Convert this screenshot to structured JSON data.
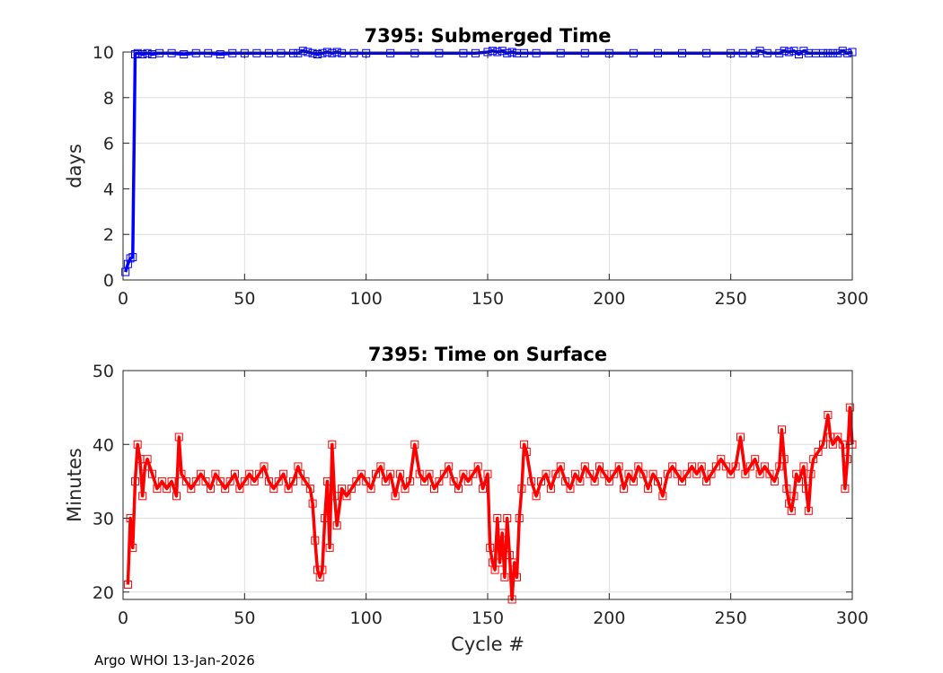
{
  "chart_data": [
    {
      "type": "line",
      "title": "7395: Submerged Time",
      "xlabel": "",
      "ylabel": "days",
      "xlim": [
        0,
        300
      ],
      "ylim": [
        0,
        10
      ],
      "xticks": [
        0,
        50,
        100,
        150,
        200,
        250,
        300
      ],
      "yticks": [
        0,
        2,
        4,
        6,
        8,
        10
      ],
      "grid": true,
      "marker": "square",
      "color": "#0000ff",
      "series": [
        {
          "x": [
            1,
            2,
            3,
            4,
            5,
            6,
            8,
            10,
            12,
            15,
            20,
            25,
            30,
            35,
            40,
            45,
            50,
            55,
            60,
            65,
            70,
            72,
            74,
            76,
            78,
            80,
            82,
            84,
            86,
            88,
            90,
            95,
            100,
            110,
            120,
            130,
            140,
            145,
            150,
            152,
            154,
            156,
            158,
            160,
            162,
            165,
            170,
            180,
            190,
            200,
            210,
            220,
            230,
            240,
            250,
            255,
            260,
            262,
            265,
            270,
            272,
            274,
            276,
            278,
            280,
            282,
            285,
            288,
            290,
            292,
            294,
            296,
            298,
            300
          ],
          "y": [
            0.35,
            0.7,
            0.95,
            1.0,
            9.9,
            9.95,
            9.9,
            9.95,
            9.9,
            9.95,
            9.95,
            9.9,
            9.95,
            9.95,
            9.9,
            9.95,
            9.95,
            9.95,
            9.95,
            9.95,
            9.95,
            9.95,
            10.05,
            10.0,
            9.95,
            9.9,
            9.95,
            10.0,
            9.95,
            10.0,
            9.95,
            9.95,
            9.95,
            9.95,
            9.95,
            9.95,
            9.95,
            9.95,
            10.0,
            10.05,
            10.0,
            10.05,
            9.95,
            10.0,
            9.95,
            9.95,
            9.95,
            9.95,
            9.95,
            9.95,
            9.95,
            9.95,
            9.95,
            9.95,
            9.95,
            9.95,
            9.95,
            10.05,
            9.95,
            9.95,
            10.05,
            10.0,
            10.05,
            9.9,
            10.05,
            9.95,
            9.95,
            9.95,
            9.95,
            9.95,
            9.95,
            10.05,
            9.95,
            10.0
          ]
        }
      ]
    },
    {
      "type": "line",
      "title": "7395: Time on Surface",
      "xlabel": "Cycle #",
      "ylabel": "Minutes",
      "xlim": [
        0,
        300
      ],
      "ylim": [
        19,
        50
      ],
      "xticks": [
        0,
        50,
        100,
        150,
        200,
        250,
        300
      ],
      "yticks": [
        20,
        30,
        40,
        50
      ],
      "grid": true,
      "marker": "square",
      "color": "#ff0000",
      "series": [
        {
          "x": [
            2,
            3,
            4,
            5,
            6,
            7,
            8,
            9,
            10,
            12,
            14,
            16,
            18,
            20,
            22,
            23,
            24,
            26,
            28,
            30,
            32,
            34,
            36,
            38,
            40,
            42,
            44,
            46,
            48,
            50,
            52,
            54,
            56,
            58,
            60,
            62,
            64,
            66,
            68,
            70,
            72,
            73,
            75,
            77,
            78,
            79,
            80,
            81,
            82,
            83,
            84,
            85,
            86,
            87,
            88,
            90,
            92,
            94,
            96,
            98,
            100,
            102,
            104,
            106,
            108,
            110,
            112,
            114,
            116,
            118,
            120,
            122,
            124,
            126,
            128,
            130,
            132,
            134,
            136,
            138,
            140,
            142,
            144,
            146,
            148,
            150,
            151,
            152,
            153,
            154,
            155,
            156,
            157,
            158,
            159,
            160,
            161,
            162,
            163,
            164,
            165,
            166,
            168,
            170,
            172,
            174,
            176,
            178,
            180,
            182,
            184,
            186,
            188,
            190,
            192,
            194,
            196,
            198,
            200,
            202,
            204,
            206,
            208,
            210,
            212,
            214,
            216,
            218,
            220,
            222,
            224,
            226,
            228,
            230,
            232,
            234,
            236,
            238,
            240,
            242,
            244,
            246,
            248,
            250,
            252,
            254,
            256,
            258,
            260,
            262,
            264,
            266,
            268,
            270,
            271,
            272,
            273,
            274,
            275,
            276,
            277,
            278,
            280,
            281,
            282,
            283,
            284,
            286,
            288,
            290,
            291,
            292,
            294,
            296,
            297,
            298,
            299,
            300
          ],
          "y": [
            21,
            30,
            26,
            35,
            40,
            38,
            33,
            37,
            38,
            36,
            34,
            35,
            34,
            35,
            33,
            41,
            36,
            35,
            34,
            35,
            36,
            35,
            34,
            36,
            35,
            34,
            35,
            36,
            34,
            35,
            36,
            35,
            36,
            37,
            35,
            34,
            35,
            36,
            34,
            35,
            37,
            36,
            35,
            34,
            32,
            27,
            23,
            22,
            23,
            30,
            35,
            26,
            40,
            33,
            29,
            34,
            33,
            34,
            35,
            36,
            35,
            34,
            36,
            37,
            35,
            36,
            33,
            36,
            34,
            35,
            40,
            36,
            35,
            36,
            34,
            35,
            36,
            37,
            35,
            34,
            36,
            35,
            36,
            37,
            34,
            36,
            26,
            24,
            23,
            30,
            24,
            28,
            22,
            30,
            25,
            19,
            24,
            22,
            30,
            34,
            40,
            39,
            35,
            33,
            35,
            36,
            34,
            36,
            37,
            35,
            34,
            36,
            35,
            37,
            36,
            35,
            37,
            36,
            35,
            36,
            37,
            34,
            36,
            35,
            37,
            36,
            34,
            36,
            35,
            33,
            36,
            37,
            36,
            35,
            36,
            37,
            36,
            37,
            35,
            36,
            37,
            38,
            37,
            36,
            37,
            41,
            36,
            37,
            38,
            36,
            37,
            36,
            35,
            37,
            42,
            38,
            34,
            32,
            31,
            33,
            36,
            35,
            37,
            34,
            31,
            36,
            38,
            39,
            40,
            44,
            41,
            40,
            41,
            40,
            34,
            38,
            45,
            40
          ]
        }
      ]
    }
  ],
  "footer": "Argo WHOI 13-Jan-2026"
}
